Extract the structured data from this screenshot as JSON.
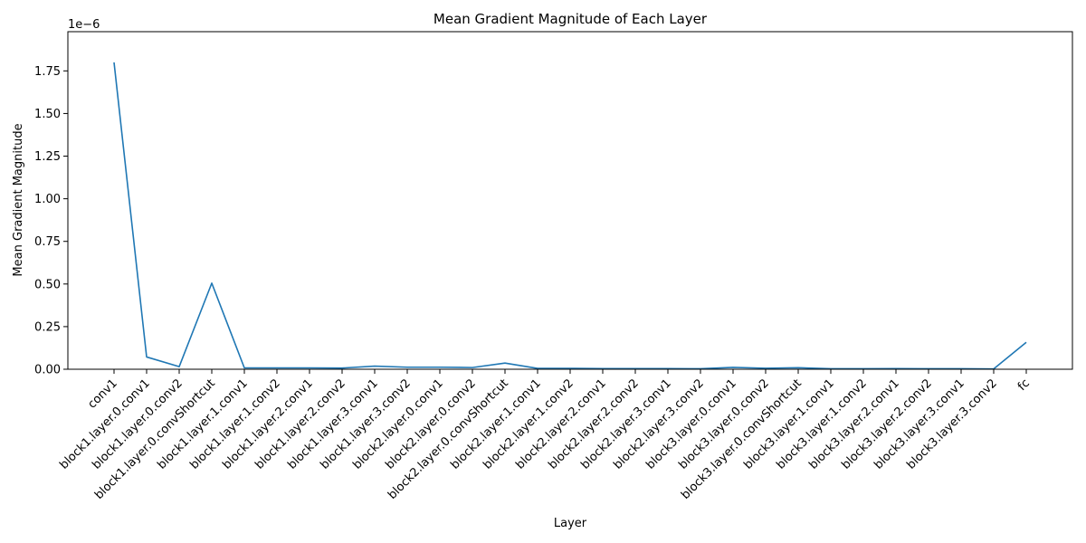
{
  "chart_data": {
    "type": "line",
    "title": "Mean Gradient Magnitude of Each Layer",
    "xlabel": "Layer",
    "ylabel": "Mean Gradient Magnitude",
    "offset_text": "1e−6",
    "y_unit_multiplier": 1e-06,
    "ylim": [
      0,
      1.98
    ],
    "yticks": [
      0.0,
      0.25,
      0.5,
      0.75,
      1.0,
      1.25,
      1.5,
      1.75
    ],
    "ytick_labels": [
      "0.00",
      "0.25",
      "0.50",
      "0.75",
      "1.00",
      "1.25",
      "1.50",
      "1.75"
    ],
    "grid": false,
    "legend": "none",
    "color": "#1f77b4",
    "categories": [
      "conv1",
      "block1.layer.0.conv1",
      "block1.layer.0.conv2",
      "block1.layer.0.convShortcut",
      "block1.layer.1.conv1",
      "block1.layer.1.conv2",
      "block1.layer.2.conv1",
      "block1.layer.2.conv2",
      "block1.layer.3.conv1",
      "block1.layer.3.conv2",
      "block2.layer.0.conv1",
      "block2.layer.0.conv2",
      "block2.layer.0.convShortcut",
      "block2.layer.1.conv1",
      "block2.layer.1.conv2",
      "block2.layer.2.conv1",
      "block2.layer.2.conv2",
      "block2.layer.3.conv1",
      "block2.layer.3.conv2",
      "block3.layer.0.conv1",
      "block3.layer.0.conv2",
      "block3.layer.0.convShortcut",
      "block3.layer.1.conv1",
      "block3.layer.1.conv2",
      "block3.layer.2.conv1",
      "block3.layer.2.conv2",
      "block3.layer.3.conv1",
      "block3.layer.3.conv2",
      "fc"
    ],
    "values": [
      1.8,
      0.072,
      0.015,
      0.505,
      0.008,
      0.008,
      0.008,
      0.007,
      0.018,
      0.012,
      0.012,
      0.01,
      0.036,
      0.005,
      0.005,
      0.004,
      0.004,
      0.004,
      0.003,
      0.011,
      0.006,
      0.009,
      0.003,
      0.003,
      0.004,
      0.003,
      0.003,
      0.002,
      0.158
    ]
  }
}
